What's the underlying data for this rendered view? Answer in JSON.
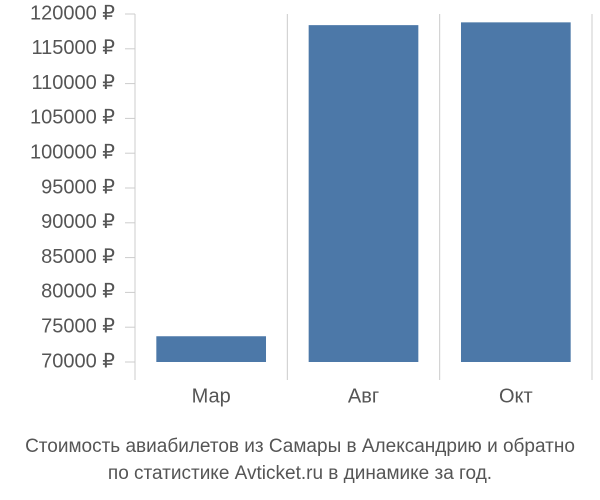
{
  "chart_data": {
    "type": "bar",
    "title": "Стоимость авиабилетов из Самары в Александрию и обратно",
    "subtitle": "по статистике Avticket.ru в динамике за год.",
    "categories": [
      "Мар",
      "Авг",
      "Окт"
    ],
    "values": [
      73700,
      118400,
      118800
    ],
    "color": "#4c78a8",
    "ylim": [
      70000,
      120000
    ],
    "yticks": [
      {
        "value": 70000,
        "label": "70000 ₽"
      },
      {
        "value": 75000,
        "label": "75000 ₽"
      },
      {
        "value": 80000,
        "label": "80000 ₽"
      },
      {
        "value": 85000,
        "label": "85000 ₽"
      },
      {
        "value": 90000,
        "label": "90000 ₽"
      },
      {
        "value": 95000,
        "label": "95000 ₽"
      },
      {
        "value": 100000,
        "label": "100000 ₽"
      },
      {
        "value": 105000,
        "label": "105000 ₽"
      },
      {
        "value": 110000,
        "label": "110000 ₽"
      },
      {
        "value": 115000,
        "label": "115000 ₽"
      },
      {
        "value": 120000,
        "label": "120000 ₽"
      }
    ],
    "grid": true
  }
}
